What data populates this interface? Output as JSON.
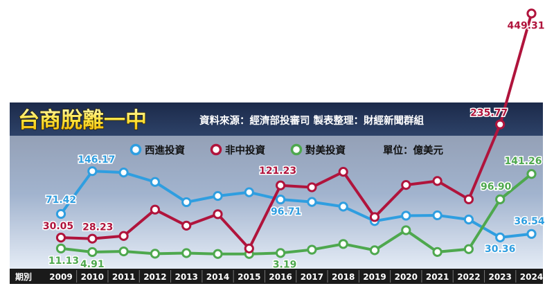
{
  "chart_data": {
    "type": "line",
    "title": "台商脫離一中",
    "source": "資料來源：經濟部投審司 製表整理：財經新聞群組",
    "unit": "單位：億美元",
    "x_axis_label": "期別",
    "categories": [
      "2009",
      "2010",
      "2011",
      "2012",
      "2013",
      "2014",
      "2015",
      "2016",
      "2017",
      "2018",
      "2019",
      "2020",
      "2021",
      "2022",
      "2023",
      "2024"
    ],
    "series": [
      {
        "name": "西進投資",
        "color": "#2f9ee0",
        "values": [
          71.42,
          146.17,
          143.8,
          127.3,
          92.0,
          102.8,
          109.3,
          96.71,
          92.4,
          84.2,
          59.0,
          68.4,
          69.0,
          61.7,
          30.36,
          36.54
        ],
        "labels": [
          {
            "index": 0,
            "text": "71.42"
          },
          {
            "index": 1,
            "text": "146.17"
          },
          {
            "index": 7,
            "text": "96.71"
          },
          {
            "index": 14,
            "text": "30.36"
          },
          {
            "index": 15,
            "text": "36.54"
          }
        ]
      },
      {
        "name": "非中投資",
        "color": "#b0143c",
        "values": [
          30.05,
          28.23,
          33.0,
          79.0,
          51.0,
          71.0,
          11.0,
          121.23,
          118.0,
          145.0,
          66.0,
          122.0,
          129.0,
          97.0,
          235.77,
          449.31
        ],
        "labels": [
          {
            "index": 0,
            "text": "30.05"
          },
          {
            "index": 1,
            "text": "28.23"
          },
          {
            "index": 7,
            "text": "121.23"
          },
          {
            "index": 14,
            "text": "235.77"
          },
          {
            "index": 15,
            "text": "449.31"
          }
        ]
      },
      {
        "name": "對美投資",
        "color": "#4ea84e",
        "values": [
          11.13,
          4.91,
          6.0,
          2.0,
          3.0,
          1.5,
          1.5,
          3.19,
          9.0,
          19.0,
          8.0,
          43.0,
          5.0,
          10.0,
          96.9,
          141.26
        ],
        "labels": [
          {
            "index": 0,
            "text": "11.13"
          },
          {
            "index": 1,
            "text": "4.91"
          },
          {
            "index": 7,
            "text": "3.19"
          },
          {
            "index": 14,
            "text": "96.90"
          },
          {
            "index": 15,
            "text": "141.26"
          }
        ]
      }
    ],
    "legend_placement": "top-center",
    "grid": false
  }
}
